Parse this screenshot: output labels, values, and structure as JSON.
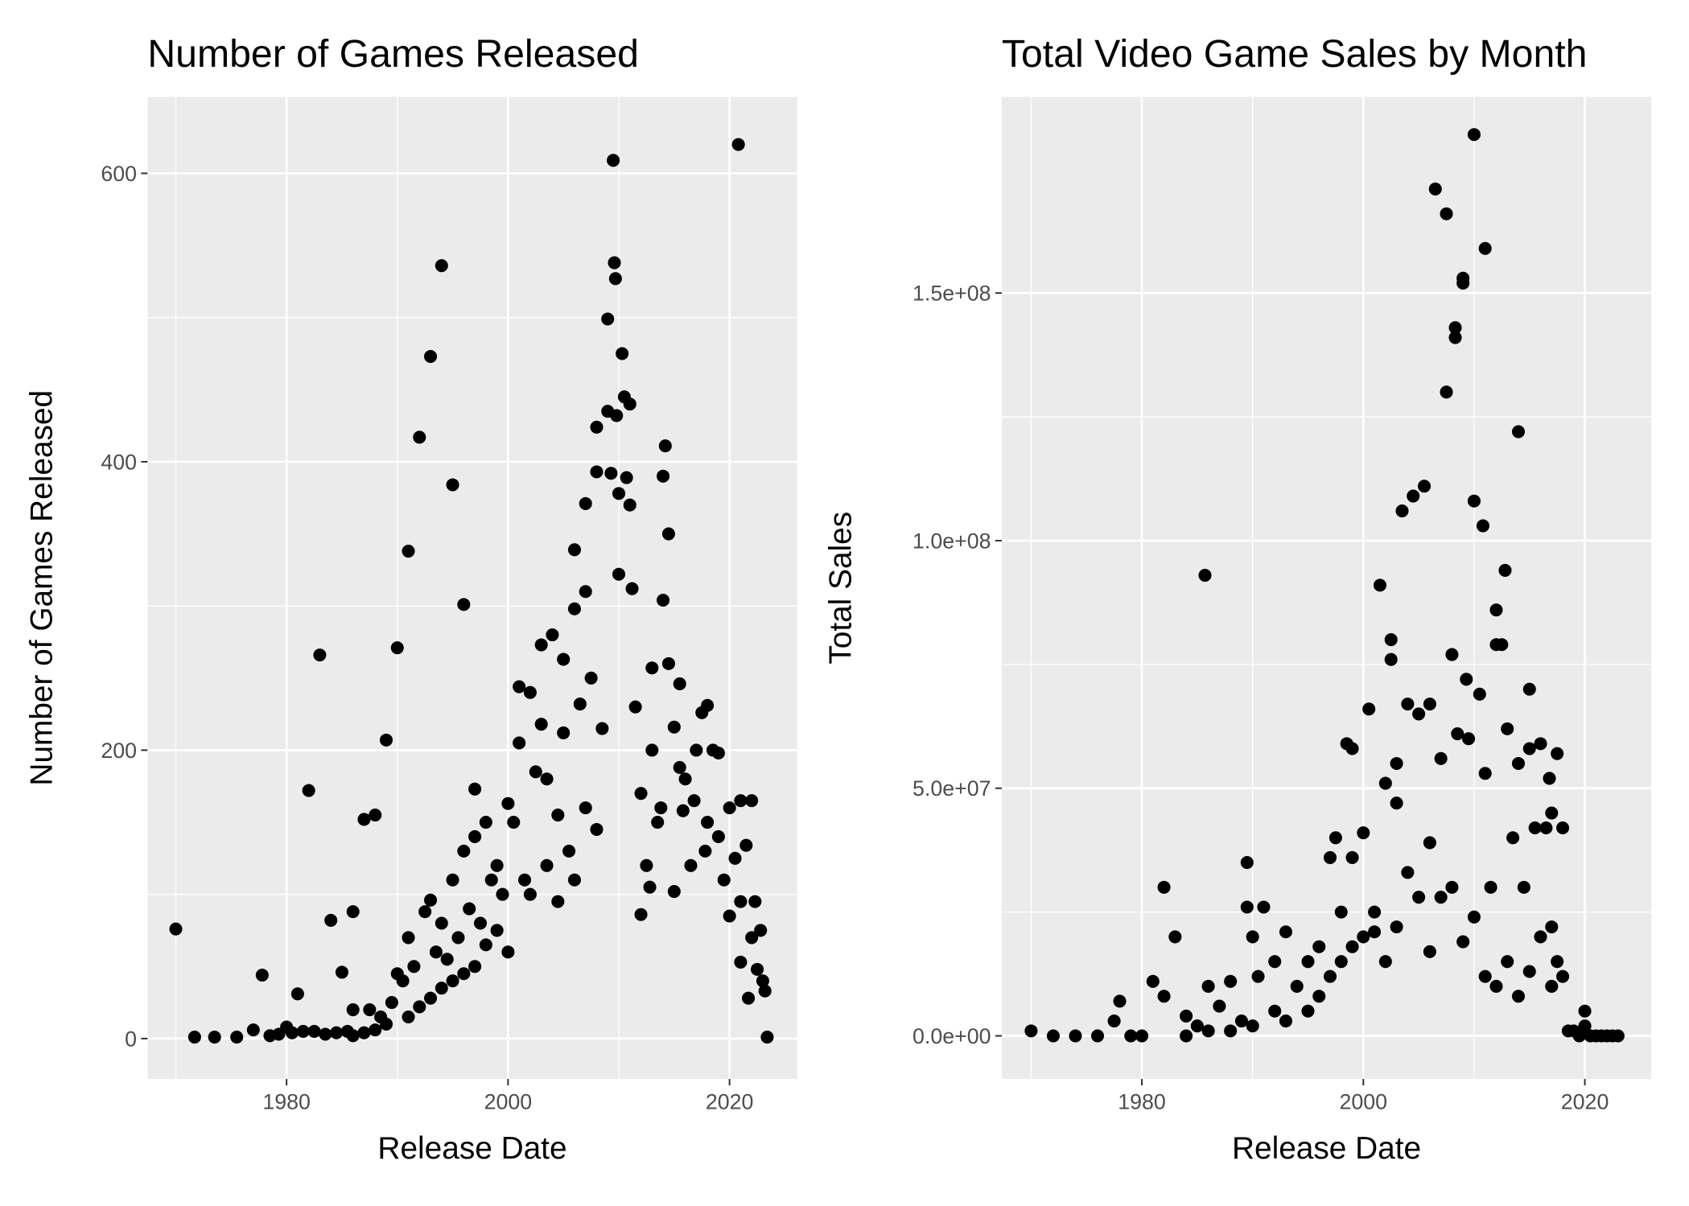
{
  "chart_data": [
    {
      "type": "scatter",
      "title": "Number of Games Released",
      "x_label": "Release Date",
      "y_label": "Number of Games Released",
      "color": "#000000",
      "grid": true,
      "xlim": [
        1967.45,
        2026.1
      ],
      "xticks": [
        1980,
        2000,
        2020
      ],
      "ylim": [
        -28,
        653
      ],
      "yticks": [
        0,
        200,
        400,
        600
      ],
      "x": [
        1970,
        1971.7,
        1973.5,
        1975.5,
        1977,
        1977.8,
        1978.5,
        1979.3,
        1980,
        1980.5,
        1981,
        1981.5,
        1982,
        1982.5,
        1983,
        1983.5,
        1984,
        1984.5,
        1985,
        1985.5,
        1986,
        1986,
        1987,
        1987.5,
        1988,
        1988.5,
        1989,
        1989.5,
        1990,
        1990,
        1990.5,
        1991,
        1991,
        1991.5,
        1992,
        1992.5,
        1993,
        1993,
        1993.5,
        1994,
        1994,
        1994.5,
        1995,
        1995,
        1995.5,
        1996,
        1996,
        1996.5,
        1997,
        1997,
        1997.5,
        1998,
        1998.5,
        1999,
        1999.5,
        2000,
        2000,
        2000.5,
        2001,
        2001,
        2001.5,
        2002,
        2002.5,
        2003,
        2003,
        2003.5,
        2004,
        2004.5,
        2005,
        2005,
        2005.5,
        2006,
        2006,
        2006.5,
        2007,
        2007,
        2007.5,
        2008,
        2008,
        2008.5,
        2009,
        2009,
        2009.3,
        2009.5,
        2009.6,
        2009.7,
        2009.8,
        2010,
        2010,
        2010.3,
        2010.5,
        2010.7,
        2011,
        2011,
        2011.2,
        2011.5,
        2012,
        2012,
        2012.5,
        2013,
        2013,
        2013.5,
        2014,
        2014,
        2014.2,
        2014.5,
        2014.5,
        2015,
        2015,
        2015.5,
        2015.5,
        2016,
        2016.5,
        2017,
        2017.5,
        2018,
        2018,
        2018.5,
        2019,
        2019,
        2019.5,
        2020,
        2020,
        2020.5,
        2020.8,
        2021,
        2021,
        2021,
        2021.5,
        2021.7,
        2022,
        2022,
        2022.3,
        2022.5,
        2022.8,
        2023,
        2023.2,
        2023.4,
        2003.5,
        2004.5,
        2002,
        1999,
        1998,
        1997,
        1996,
        1995,
        1994,
        1993,
        1992,
        1991,
        1989,
        1988,
        1987,
        1986,
        2006,
        2007,
        2008,
        2012.8,
        2013.8,
        2016.8,
        2017.8,
        2015.8
      ],
      "values": [
        76,
        1,
        1,
        1,
        6,
        44,
        2,
        3,
        8,
        4,
        31,
        5,
        172,
        5,
        266,
        3,
        82,
        4,
        46,
        5,
        88,
        20,
        152,
        20,
        155,
        15,
        207,
        25,
        271,
        45,
        40,
        338,
        70,
        50,
        417,
        88,
        473,
        96,
        60,
        536,
        80,
        55,
        384,
        110,
        70,
        301,
        130,
        90,
        173,
        140,
        80,
        150,
        110,
        120,
        100,
        163,
        60,
        150,
        244,
        205,
        110,
        240,
        185,
        273,
        218,
        180,
        280,
        155,
        263,
        212,
        130,
        339,
        298,
        232,
        371,
        310,
        250,
        424,
        393,
        215,
        499,
        435,
        392,
        609,
        538,
        527,
        432,
        378,
        322,
        475,
        445,
        389,
        440,
        370,
        312,
        230,
        86,
        170,
        120,
        257,
        200,
        150,
        390,
        304,
        411,
        350,
        260,
        216,
        102,
        246,
        188,
        180,
        120,
        200,
        226,
        231,
        150,
        200,
        198,
        140,
        110,
        160,
        85,
        125,
        620,
        165,
        95,
        53,
        134,
        28,
        165,
        70,
        95,
        48,
        75,
        40,
        33,
        1,
        120,
        95,
        100,
        75,
        65,
        50,
        45,
        40,
        35,
        28,
        22,
        15,
        10,
        6,
        4,
        2,
        110,
        160,
        145,
        105,
        160,
        165,
        130,
        158
      ]
    },
    {
      "type": "scatter",
      "title": "Total Video Game Sales by Month",
      "x_label": "Release Date",
      "y_label": "Total Sales",
      "color": "#000000",
      "grid": true,
      "xlim": [
        1967.35,
        2026.0
      ],
      "xticks": [
        1980,
        2000,
        2020
      ],
      "ylim": [
        -8700000,
        189600000
      ],
      "yticks": [
        {
          "value": 0,
          "label": "0.0e+00"
        },
        {
          "value": 50000000,
          "label": "5.0e+07"
        },
        {
          "value": 100000000,
          "label": "1.0e+08"
        },
        {
          "value": 150000000,
          "label": "1.5e+08"
        }
      ],
      "x": [
        1970,
        1972,
        1974,
        1976,
        1977.5,
        1978,
        1979,
        1980,
        1981,
        1982,
        1982,
        1983,
        1984,
        1985,
        1985.7,
        1986,
        1987,
        1988,
        1989,
        1989.5,
        1989.5,
        1990,
        1990.5,
        1991,
        1992,
        1993,
        1994,
        1995,
        1996,
        1997,
        1997.5,
        1998,
        1998.5,
        1999,
        1999,
        2000,
        2000.5,
        2001,
        2001.5,
        2002,
        2002.5,
        2002.5,
        2003,
        2003,
        2003.5,
        2004,
        2004.5,
        2005,
        2005.5,
        2006,
        2006,
        2006.5,
        2007,
        2007.5,
        2007.5,
        2008,
        2008.3,
        2008.3,
        2008.5,
        2009,
        2009,
        2009.3,
        2009.5,
        2010,
        2010,
        2010.5,
        2010.8,
        2011,
        2011,
        2011.5,
        2012,
        2012,
        2012.5,
        2012.8,
        2013,
        2013.5,
        2014,
        2014,
        2014.5,
        2015,
        2015,
        2015.5,
        2016,
        2016.5,
        2016.8,
        2017,
        2017,
        2017.5,
        2017.5,
        2018,
        2018,
        2018.5,
        2019,
        2019.5,
        2020,
        2020,
        2020.5,
        2021,
        2021.5,
        2022,
        2022.5,
        2023,
        1995,
        1996,
        1997,
        1998,
        1999,
        2000,
        2001,
        2002,
        2003,
        2004,
        2005,
        2006,
        2007,
        2008,
        2009,
        2010,
        2011,
        2012,
        2013,
        2014,
        2015,
        2016,
        2017,
        1992,
        1993,
        1990,
        1988,
        1986,
        1984
      ],
      "values": [
        1000000,
        0,
        0,
        0,
        3000000,
        7000000,
        0,
        0,
        11000000,
        30000000,
        8000000,
        20000000,
        4000000,
        2000000,
        93000000,
        10000000,
        6000000,
        11000000,
        3000000,
        35000000,
        26000000,
        20000000,
        12000000,
        26000000,
        15000000,
        21000000,
        10000000,
        15000000,
        18000000,
        36000000,
        40000000,
        25000000,
        59000000,
        58000000,
        36000000,
        41000000,
        66000000,
        21000000,
        91000000,
        51000000,
        80000000,
        76000000,
        55000000,
        47000000,
        106000000,
        67000000,
        109000000,
        65000000,
        111000000,
        67000000,
        39000000,
        171000000,
        56000000,
        130000000,
        166000000,
        77000000,
        141000000,
        143000000,
        61000000,
        153000000,
        152000000,
        72000000,
        60000000,
        182000000,
        108000000,
        69000000,
        103000000,
        159000000,
        53000000,
        30000000,
        86000000,
        79000000,
        79000000,
        94000000,
        62000000,
        40000000,
        122000000,
        55000000,
        30000000,
        70000000,
        58000000,
        42000000,
        59000000,
        42000000,
        52000000,
        45000000,
        22000000,
        57000000,
        15000000,
        12000000,
        42000000,
        1000000,
        1000000,
        0,
        5000000,
        2000000,
        0,
        0,
        0,
        0,
        0,
        0,
        5000000,
        8000000,
        12000000,
        15000000,
        18000000,
        20000000,
        25000000,
        15000000,
        22000000,
        33000000,
        28000000,
        17000000,
        28000000,
        30000000,
        19000000,
        24000000,
        12000000,
        10000000,
        15000000,
        8000000,
        13000000,
        20000000,
        10000000,
        5000000,
        3000000,
        2000000,
        1000000,
        1000000,
        0
      ]
    }
  ]
}
